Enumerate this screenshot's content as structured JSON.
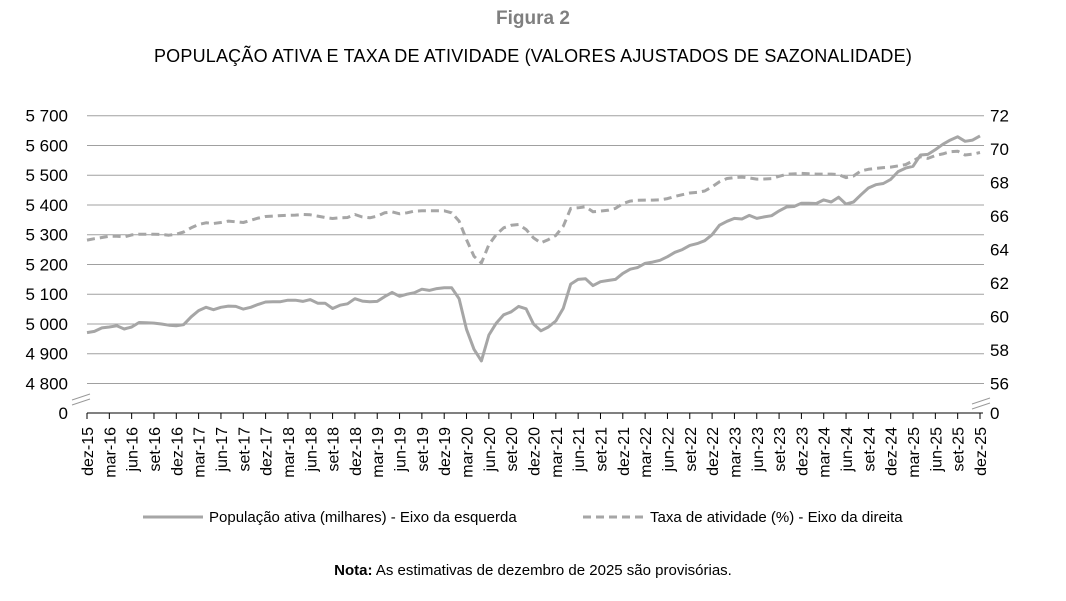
{
  "figure_label": "Figura 2",
  "note": {
    "bold": "Nota:",
    "text": " As estimativas de dezembro de 2025 são provisórias."
  },
  "colors": {
    "line": "#a6a6a6",
    "grid": "#a0a0a0",
    "axis": "#000000",
    "label_gray": "#7f7f7f"
  },
  "chart_data": {
    "type": "line",
    "title": "POPULAÇÃO ATIVA E TAXA DE ATIVIDADE (VALORES AJUSTADOS DE SAZONALIDADE)",
    "x_start": "dez-15",
    "x_end": "dez-25",
    "frequency": "monthly",
    "x_tick_labels": [
      "dez-15",
      "mar-16",
      "jun-16",
      "set-16",
      "dez-16",
      "mar-17",
      "jun-17",
      "set-17",
      "dez-17",
      "mar-18",
      "jun-18",
      "set-18",
      "dez-18",
      "mar-19",
      "jun-19",
      "set-19",
      "dez-19",
      "mar-20",
      "jun-20",
      "set-20",
      "dez-20",
      "mar-21",
      "jun-21",
      "set-21",
      "dez-21",
      "mar-22",
      "jun-22",
      "set-22",
      "dez-22",
      "mar-23",
      "jun-23",
      "set-23",
      "dez-23",
      "mar-24",
      "jun-24",
      "set-24",
      "dez-24",
      "mar-25",
      "jun-25",
      "set-25",
      "dez-25"
    ],
    "y_left": {
      "ylim": [
        4800,
        5700
      ],
      "ticks": [
        "5 700",
        "5 600",
        "5 500",
        "5 400",
        "5 300",
        "5 200",
        "5 100",
        "5 000",
        "4 900",
        "4 800"
      ],
      "tick_values": [
        5700,
        5600,
        5500,
        5400,
        5300,
        5200,
        5100,
        5000,
        4900,
        4800
      ],
      "break_label": "0"
    },
    "y_right": {
      "ylim": [
        56,
        72
      ],
      "ticks": [
        "72",
        "70",
        "68",
        "66",
        "64",
        "62",
        "60",
        "58",
        "56"
      ],
      "tick_values": [
        72,
        70,
        68,
        66,
        64,
        62,
        60,
        58,
        56
      ],
      "break_label": "0"
    },
    "grid": true,
    "legend_position": "bottom",
    "series": [
      {
        "name": "População ativa (milhares) - Eixo da esquerda",
        "axis": "left",
        "style": "solid",
        "values": [
          4971,
          4975,
          4987,
          4990,
          4994,
          4983,
          4990,
          5005,
          5004,
          5003,
          5000,
          4996,
          4994,
          4998,
          5024,
          5045,
          5056,
          5048,
          5056,
          5060,
          5059,
          5050,
          5056,
          5066,
          5074,
          5075,
          5075,
          5080,
          5080,
          5076,
          5082,
          5070,
          5070,
          5052,
          5063,
          5068,
          5085,
          5077,
          5075,
          5076,
          5092,
          5106,
          5093,
          5100,
          5105,
          5117,
          5113,
          5119,
          5122,
          5122,
          5085,
          4982,
          4915,
          4876,
          4963,
          5003,
          5031,
          5041,
          5059,
          5051,
          5000,
          4977,
          4990,
          5010,
          5053,
          5134,
          5150,
          5152,
          5129,
          5142,
          5146,
          5150,
          5170,
          5184,
          5190,
          5204,
          5208,
          5214,
          5226,
          5241,
          5250,
          5264,
          5270,
          5280,
          5300,
          5332,
          5345,
          5355,
          5353,
          5365,
          5355,
          5360,
          5364,
          5380,
          5393,
          5395,
          5406,
          5406,
          5405,
          5417,
          5410,
          5426,
          5403,
          5410,
          5434,
          5457,
          5468,
          5472,
          5486,
          5512,
          5524,
          5530,
          5568,
          5570,
          5586,
          5604,
          5618,
          5629,
          5614,
          5618,
          5632
        ]
      },
      {
        "name": "Taxa de atividade (%) - Eixo da direita",
        "axis": "right",
        "style": "dashed",
        "values": [
          64.57,
          64.65,
          64.72,
          64.8,
          64.8,
          64.76,
          64.88,
          64.92,
          64.92,
          64.92,
          64.9,
          64.86,
          64.92,
          65.05,
          65.3,
          65.5,
          65.6,
          65.56,
          65.62,
          65.7,
          65.66,
          65.62,
          65.75,
          65.88,
          65.98,
          66.0,
          66.03,
          66.05,
          66.06,
          66.1,
          66.08,
          66.0,
          65.92,
          65.86,
          65.9,
          65.92,
          66.1,
          65.95,
          65.9,
          66.0,
          66.2,
          66.25,
          66.14,
          66.2,
          66.3,
          66.32,
          66.32,
          66.32,
          66.32,
          66.2,
          65.7,
          64.6,
          63.6,
          63.2,
          64.3,
          64.9,
          65.3,
          65.45,
          65.5,
          65.2,
          64.7,
          64.4,
          64.6,
          64.85,
          65.4,
          66.46,
          66.5,
          66.56,
          66.26,
          66.3,
          66.35,
          66.46,
          66.75,
          66.9,
          66.95,
          66.96,
          66.96,
          66.97,
          67.05,
          67.18,
          67.28,
          67.38,
          67.42,
          67.5,
          67.75,
          68.05,
          68.25,
          68.3,
          68.33,
          68.28,
          68.21,
          68.22,
          68.24,
          68.38,
          68.5,
          68.52,
          68.55,
          68.53,
          68.51,
          68.51,
          68.51,
          68.48,
          68.3,
          68.4,
          68.7,
          68.8,
          68.85,
          68.9,
          68.93,
          69.0,
          69.08,
          69.3,
          69.55,
          69.45,
          69.62,
          69.72,
          69.85,
          69.88,
          69.65,
          69.7,
          69.8
        ]
      }
    ]
  }
}
